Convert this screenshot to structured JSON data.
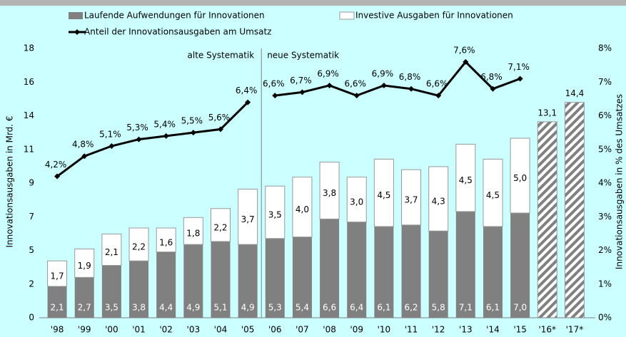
{
  "chart_data": {
    "type": "bar",
    "categories": [
      "'98",
      "'99",
      "'00",
      "'01",
      "'02",
      "'03",
      "'04",
      "'05",
      "'06",
      "'07",
      "'08",
      "'09",
      "'10",
      "'11",
      "'12",
      "'13",
      "'14",
      "'15",
      "'16*",
      "'17*"
    ],
    "series": [
      {
        "name": "Laufende Aufwendungen für Innovationen",
        "color": "#808080",
        "values": [
          2.1,
          2.7,
          3.5,
          3.8,
          4.4,
          4.9,
          5.1,
          4.9,
          5.3,
          5.4,
          6.6,
          6.4,
          6.1,
          6.2,
          5.8,
          7.1,
          6.1,
          7.0,
          null,
          null
        ],
        "value_labels": [
          "2,1",
          "2,7",
          "3,5",
          "3,8",
          "4,4",
          "4,9",
          "5,1",
          "4,9",
          "5,3",
          "5,4",
          "6,6",
          "6,4",
          "6,1",
          "6,2",
          "5,8",
          "7,1",
          "6,1",
          "7,0",
          null,
          null
        ]
      },
      {
        "name": "Investive Ausgaben für Innovationen",
        "color": "#ffffff",
        "values": [
          1.7,
          1.9,
          2.1,
          2.2,
          1.6,
          1.8,
          2.2,
          3.7,
          3.5,
          4.0,
          3.8,
          3.0,
          4.5,
          3.7,
          4.3,
          4.5,
          4.5,
          5.0,
          null,
          null
        ],
        "value_labels": [
          "1,7",
          "1,9",
          "2,1",
          "2,2",
          "1,6",
          "1,8",
          "2,2",
          "3,7",
          "3,5",
          "4,0",
          "3,8",
          "3,0",
          "4,5",
          "3,7",
          "4,3",
          "4,5",
          "4,5",
          "5,0",
          null,
          null
        ]
      },
      {
        "name": "Anteil der Innovationsausgaben am Umsatz",
        "color": "#000000",
        "axis": "y2",
        "kind": "line",
        "values": [
          4.2,
          4.8,
          5.1,
          5.3,
          5.4,
          5.5,
          5.6,
          6.4,
          6.6,
          6.7,
          6.9,
          6.6,
          6.9,
          6.8,
          6.6,
          7.6,
          6.8,
          7.1,
          null,
          null
        ],
        "value_labels": [
          "4,2%",
          "4,8%",
          "5,1%",
          "5,3%",
          "5,4%",
          "5,5%",
          "5,6%",
          "6,4%",
          "6,6%",
          "6,7%",
          "6,9%",
          "6,6%",
          "6,9%",
          "6,8%",
          "6,6%",
          "7,6%",
          "6,8%",
          "7,1%",
          null,
          null
        ]
      }
    ],
    "forecast": {
      "values": [
        null,
        null,
        null,
        null,
        null,
        null,
        null,
        null,
        null,
        null,
        null,
        null,
        null,
        null,
        null,
        null,
        null,
        null,
        13.1,
        14.4
      ],
      "value_labels": [
        null,
        null,
        null,
        null,
        null,
        null,
        null,
        null,
        null,
        null,
        null,
        null,
        null,
        null,
        null,
        null,
        null,
        null,
        "13,1",
        "14,4"
      ]
    },
    "divider_after": "'05",
    "annotations": [
      "alte Systematik",
      "neue Systematik"
    ],
    "ylabel": "Innovationsausgaben in Mrd. €",
    "y2label": "Innovationsausgaben in % des Umsatzes",
    "ylim": [
      0,
      18
    ],
    "yticks": [
      0,
      {
        "value": 2.25,
        "label": "2"
      },
      {
        "value": 4.5,
        "label": "5"
      },
      {
        "value": 6.75,
        "label": "7"
      },
      9,
      {
        "value": 11.25,
        "label": "11"
      },
      {
        "value": 13.5,
        "label": "14"
      },
      {
        "value": 15.75,
        "label": "16"
      },
      18
    ],
    "y2lim": [
      0,
      8
    ],
    "y2ticks": [
      {
        "value": 0,
        "label": "0%"
      },
      {
        "value": 1,
        "label": "1%"
      },
      {
        "value": 2,
        "label": "2%"
      },
      {
        "value": 3,
        "label": "3%"
      },
      {
        "value": 4,
        "label": "4%"
      },
      {
        "value": 5,
        "label": "5%"
      },
      {
        "value": 6,
        "label": "6%"
      },
      {
        "value": 7,
        "label": "7%"
      },
      {
        "value": 8,
        "label": "8%"
      }
    ],
    "grid": false
  }
}
